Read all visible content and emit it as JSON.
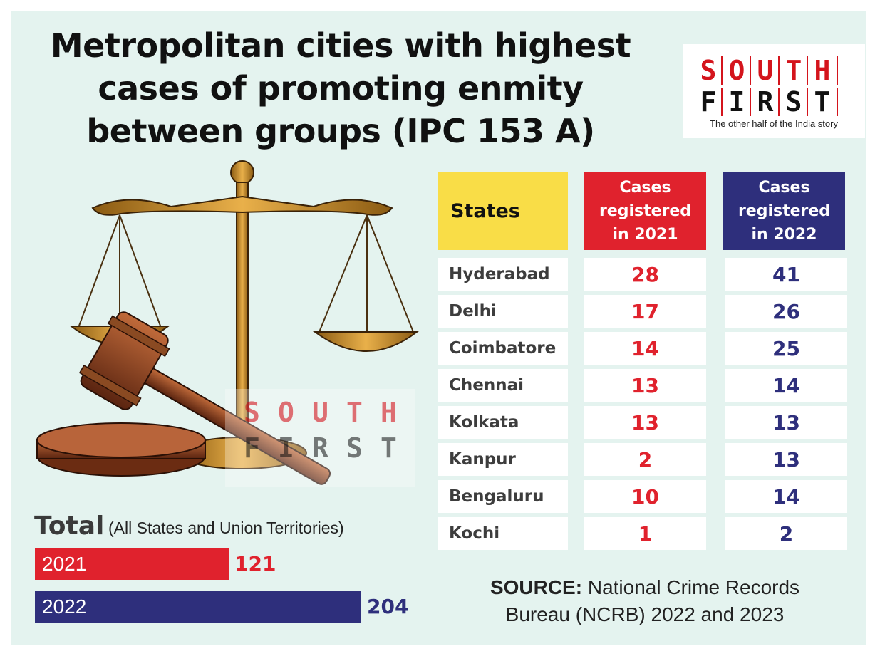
{
  "title": "Metropolitan cities with highest cases of promoting enmity between groups (IPC 153 A)",
  "title_lines": [
    "Metropolitan cities with highest",
    "cases of promoting enmity",
    "between groups (IPC 153 A)"
  ],
  "logo": {
    "row1": [
      "S",
      "O",
      "U",
      "T",
      "H"
    ],
    "row2": [
      "F",
      "I",
      "R",
      "S",
      "T"
    ],
    "tagline": "The other half of the India story"
  },
  "colors": {
    "panel": "#e4f3ef",
    "header_states": "#f9dd47",
    "red": "#e0222d",
    "blue": "#2e2f7c",
    "state_text": "#3d3d3d"
  },
  "total": {
    "heading": "Total",
    "subtitle": "(All States and Union Territories)"
  },
  "table": {
    "headers": {
      "states": "States",
      "y2021": [
        "Cases",
        "registered",
        "in 2021"
      ],
      "y2022": [
        "Cases",
        "registered",
        "in 2022"
      ]
    }
  },
  "source": {
    "label": "SOURCE:",
    "line1": "National Crime Records",
    "line2": "Bureau (NCRB) 2022 and 2023"
  },
  "chart_data": [
    {
      "type": "table",
      "columns": [
        "States",
        "Cases registered in 2021",
        "Cases registered in 2022"
      ],
      "rows": [
        [
          "Hyderabad",
          28,
          41
        ],
        [
          "Delhi",
          17,
          26
        ],
        [
          "Coimbatore",
          14,
          25
        ],
        [
          "Chennai",
          13,
          14
        ],
        [
          "Kolkata",
          13,
          13
        ],
        [
          "Kanpur",
          2,
          13
        ],
        [
          "Bengaluru",
          10,
          14
        ],
        [
          "Kochi",
          1,
          2
        ]
      ]
    },
    {
      "type": "bar",
      "orientation": "horizontal",
      "categories": [
        "2021",
        "2022"
      ],
      "values": [
        121,
        204
      ],
      "colors": [
        "#e0222d",
        "#2e2f7c"
      ],
      "xlim": [
        0,
        204
      ]
    }
  ]
}
